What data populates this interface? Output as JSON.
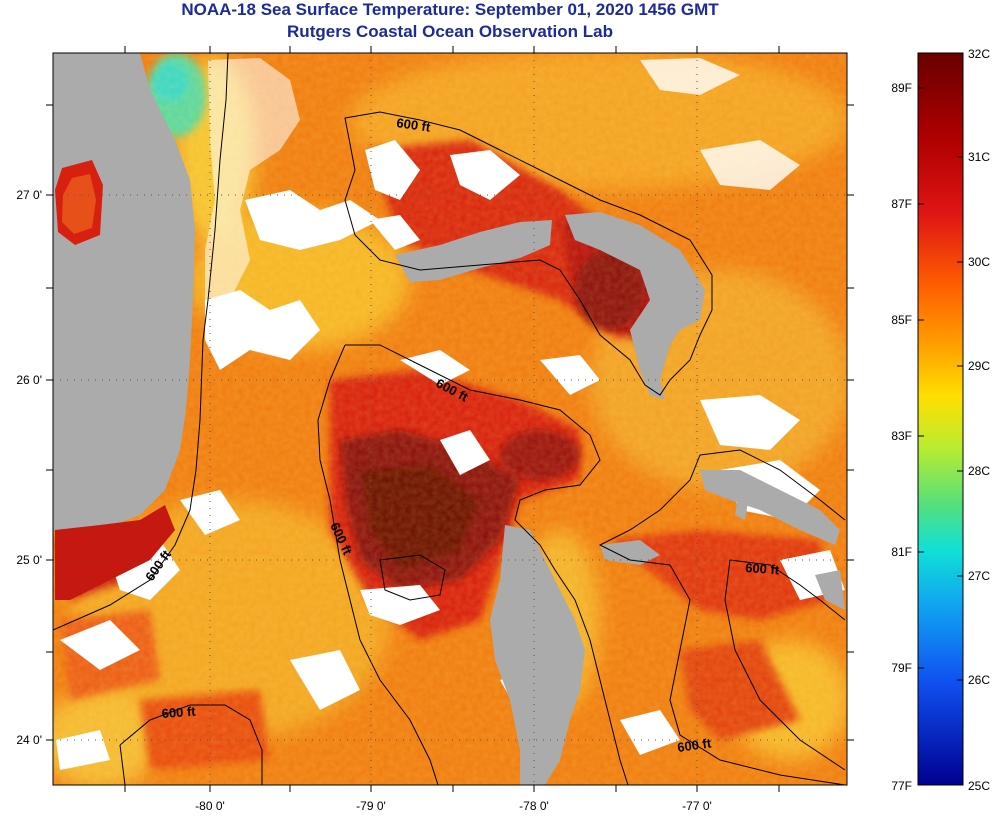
{
  "header": {
    "title": "NOAA-18 Sea Surface Temperature:  September 01, 2020 1456 GMT",
    "subtitle": "Rutgers Coastal Ocean Observation Lab"
  },
  "map": {
    "longitude_ticks": [
      "-80 0'",
      "-79 0'",
      "-78 0'",
      "-77 0'"
    ],
    "latitude_ticks": [
      "27 0'",
      "26 0'",
      "25 0'",
      "24 0'"
    ],
    "contour_label": "600 ft",
    "colors": {
      "land": "#ababab",
      "cloud": "#ffffff",
      "warm_water": "#f07a10",
      "hot_water": "#c01010",
      "hottest_water": "#6e0a08",
      "cool_water": "#f2b422",
      "coldest_patch": "#38d6c8",
      "contour": "#000000"
    }
  },
  "colorbar": {
    "celsius_labels": [
      "32C",
      "31C",
      "30C",
      "29C",
      "28C",
      "27C",
      "26C",
      "25C"
    ],
    "fahrenheit_labels": [
      "89F",
      "87F",
      "85F",
      "83F",
      "81F",
      "79F",
      "77F"
    ],
    "range_celsius": [
      25,
      32
    ],
    "colors": [
      "#7a0000",
      "#d01010",
      "#ff6a00",
      "#ffd400",
      "#8ee84a",
      "#10e0e0",
      "#1060ff",
      "#0000a0"
    ]
  }
}
